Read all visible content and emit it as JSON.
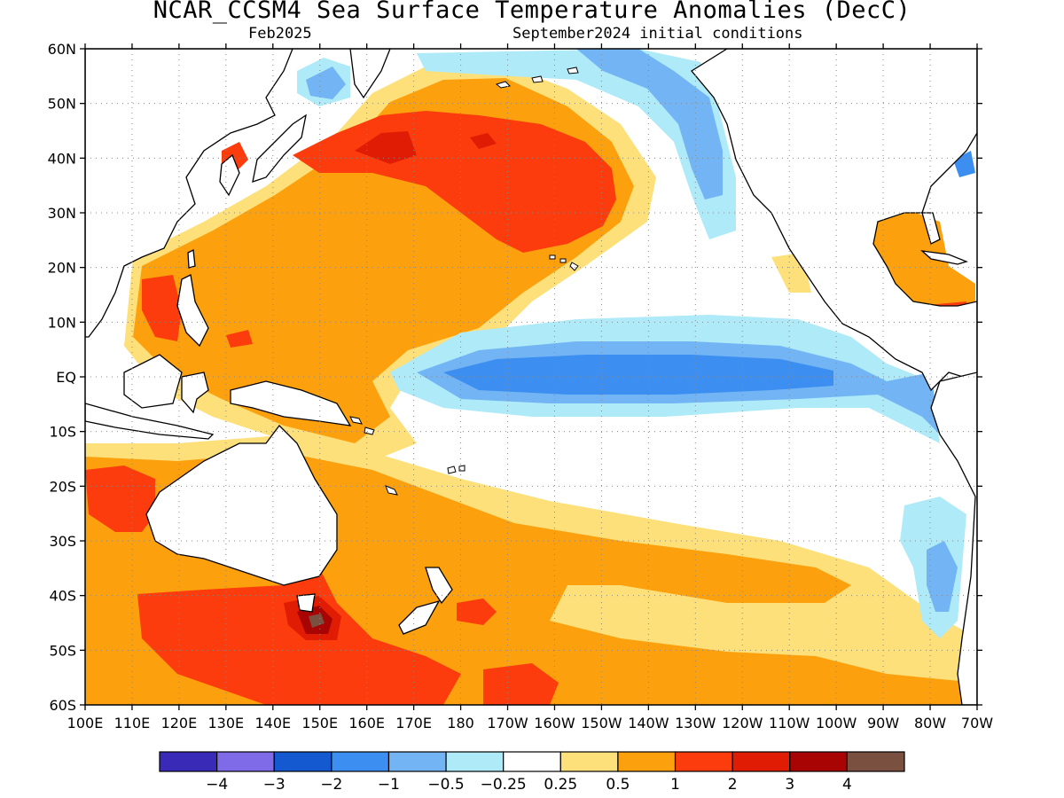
{
  "title": "NCAR_CCSM4 Sea Surface Temperature Anomalies (DecC)",
  "subtitle_left": "Feb2025",
  "subtitle_right": "September2024 initial conditions",
  "lat_labels": [
    "60N",
    "50N",
    "40N",
    "30N",
    "20N",
    "10N",
    "EQ",
    "10S",
    "20S",
    "30S",
    "40S",
    "50S",
    "60S"
  ],
  "lon_labels": [
    "100E",
    "110E",
    "120E",
    "130E",
    "140E",
    "150E",
    "160E",
    "170E",
    "180",
    "170W",
    "160W",
    "150W",
    "140W",
    "130W",
    "120W",
    "110W",
    "100W",
    "90W",
    "80W",
    "70W"
  ],
  "colorbar": {
    "colors": [
      "#3a2ab8",
      "#7f6ae8",
      "#1559d0",
      "#3c8ff0",
      "#72b4f4",
      "#aeeaf8",
      "#ffffff",
      "#fde07a",
      "#fca00e",
      "#fc3c0c",
      "#e01c04",
      "#a80404",
      "#7a5040"
    ],
    "labels": [
      "-4",
      "-3",
      "-2",
      "-1",
      "-0.5",
      "-0.25",
      "0.25",
      "0.5",
      "1",
      "2",
      "3",
      "4"
    ]
  },
  "palette": {
    "land": "#ffffff",
    "light_yellow": "#fde07a",
    "orange": "#fca00e",
    "red_orange": "#fc3c0c",
    "red": "#e01c04",
    "dark_red": "#a80404",
    "brown": "#7a5040",
    "light_cyan": "#aeeaf8",
    "light_blue": "#72b4f4",
    "blue": "#3c8ff0"
  }
}
